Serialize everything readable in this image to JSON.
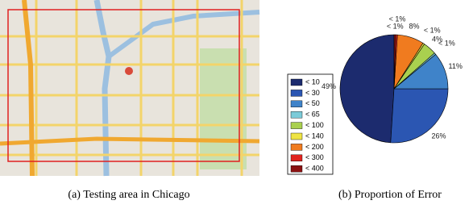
{
  "chart_data": {
    "type": "pie",
    "categories": [
      "< 10",
      "< 30",
      "< 50",
      "< 65",
      "< 100",
      "< 140",
      "< 200",
      "< 300",
      "< 400"
    ],
    "values": [
      49,
      26,
      11,
      0.5,
      4,
      0.5,
      8,
      0.5,
      0.5
    ],
    "value_labels": [
      "49%",
      "26%",
      "11%",
      "< 1%",
      "4%",
      "< 1%",
      "8%",
      "< 1%",
      "< 1%"
    ],
    "colors": [
      "#1c2b6e",
      "#2b56b2",
      "#3f83c9",
      "#7ccbd8",
      "#a9d04f",
      "#efe444",
      "#f07b1f",
      "#e0241f",
      "#8b1212"
    ],
    "direction": "counterclockwise"
  },
  "captions": [
    "(a) Testing area in Chicago",
    "(b) Proportion of Error"
  ]
}
